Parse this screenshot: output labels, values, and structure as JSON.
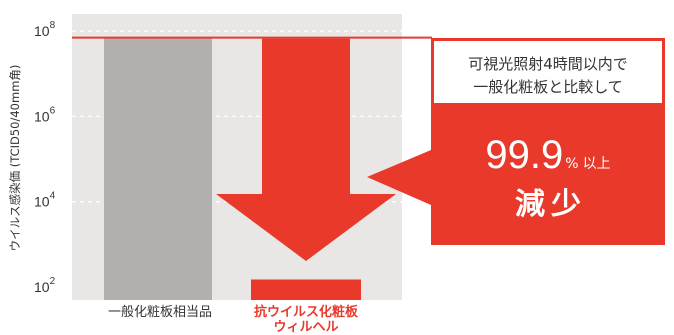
{
  "chart_data": {
    "type": "bar",
    "yscale": "log",
    "ylabel": "ウイルス感染価 (TCID50/40mm角)",
    "ylim": [
      100,
      100000000
    ],
    "yticks": [
      {
        "value": 100000000,
        "base": "10",
        "exp": "8"
      },
      {
        "value": 1000000,
        "base": "10",
        "exp": "6"
      },
      {
        "value": 10000,
        "base": "10",
        "exp": "4"
      },
      {
        "value": 100,
        "base": "10",
        "exp": "2"
      }
    ],
    "categories": [
      {
        "label": "一般化粧板相当品",
        "label_line2": ""
      },
      {
        "label": "抗ウイルス化粧板",
        "label_line2": "ウィルヘル"
      }
    ],
    "values": [
      70000000,
      150
    ],
    "reference_line_value": 70000000,
    "grid": true,
    "annotations": {
      "callout_line1": "可視光照射4時間以内で",
      "callout_line2": "一般化粧板と比較して",
      "result_number": "99.9",
      "result_unit": "%",
      "result_suffix": "以上",
      "result_word": "減少"
    }
  },
  "colors": {
    "plot_background": "#e8e7e5",
    "control_bar": "#b2b0ae",
    "accent_red": "#e8392b",
    "grid": "#ffffff",
    "text": "#333333"
  }
}
